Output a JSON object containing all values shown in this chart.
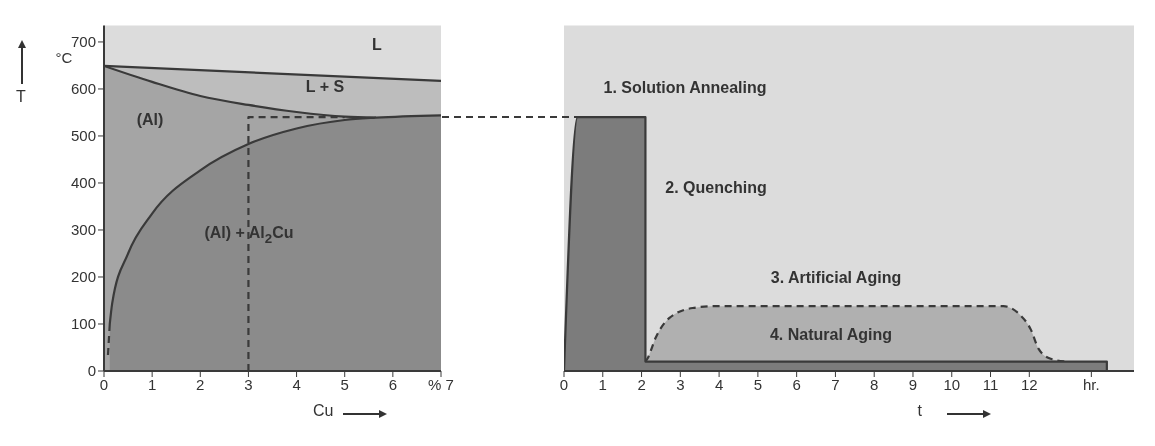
{
  "chart_data": [
    {
      "type": "area",
      "xlabel": "Cu",
      "ylabel": "T",
      "xlim": [
        0,
        7
      ],
      "ylim": [
        0,
        735
      ],
      "xticks": [
        0,
        1,
        2,
        3,
        4,
        5,
        6,
        {
          "value": 7,
          "label": "% 7"
        }
      ],
      "yticks": [
        0,
        100,
        200,
        300,
        400,
        500,
        600,
        700
      ],
      "marker": "none",
      "series": [
        {
          "color": "#bdbdbd",
          "x": [
            0,
            7
          ],
          "values": [
            649,
            617
          ]
        },
        {
          "color": "#a5a5a5",
          "x": [
            0,
            1,
            2,
            3,
            4,
            5,
            5.65
          ],
          "values": [
            649,
            615,
            585,
            566,
            551,
            541,
            539
          ]
        },
        {
          "color": "#8b8b8b",
          "x": [
            0.12,
            0.17,
            0.5,
            1,
            2,
            3,
            4,
            5,
            5.65,
            7
          ],
          "values": [
            100,
            144,
            250,
            335,
            427,
            483,
            516,
            534,
            539,
            544
          ]
        },
        {
          "type": "line",
          "color": "#3a3a3a",
          "line_style": "dashed",
          "x": [
            0.12,
            0.08
          ],
          "values": [
            100,
            30
          ]
        },
        {
          "type": "line",
          "color": "#3a3a3a",
          "line_style": "dashed",
          "x": [
            3,
            3,
            5
          ],
          "values": [
            0,
            540,
            540
          ]
        }
      ],
      "annotations": [
        "°C",
        "L",
        "L + S",
        "(Al)",
        "(Al) + Al$_{2}$Cu"
      ]
    },
    {
      "type": "area",
      "xlabel": "t",
      "xlim": [
        0,
        14.7
      ],
      "ylim": [
        0,
        735
      ],
      "tick_labels": "x",
      "xticks": [
        0,
        1,
        2,
        3,
        4,
        5,
        6,
        7,
        8,
        9,
        10,
        11,
        12,
        {
          "value": 13.6,
          "label": "hr."
        }
      ],
      "marker": "none",
      "series": [
        {
          "color": "#b0b0b0",
          "line_style": "dashed",
          "x": [
            2.1,
            2.15,
            2.37,
            2.72,
            3.32,
            3.93,
            11.33,
            11.74,
            12.04,
            12.24,
            12.55,
            12.95
          ],
          "values": [
            20,
            26,
            72,
            113,
            134,
            138,
            138,
            121,
            88,
            47,
            26,
            20
          ]
        },
        {
          "color": "#7c7c7c",
          "x": [
            0,
            0.35,
            2.1,
            2.1,
            14,
            14
          ],
          "values": [
            0,
            540,
            540,
            20,
            20,
            0
          ]
        }
      ],
      "annotations": [
        "1. Solution Annealing",
        "2. Quenching",
        "3. Artificial Aging",
        "4. Natural Aging"
      ]
    }
  ]
}
